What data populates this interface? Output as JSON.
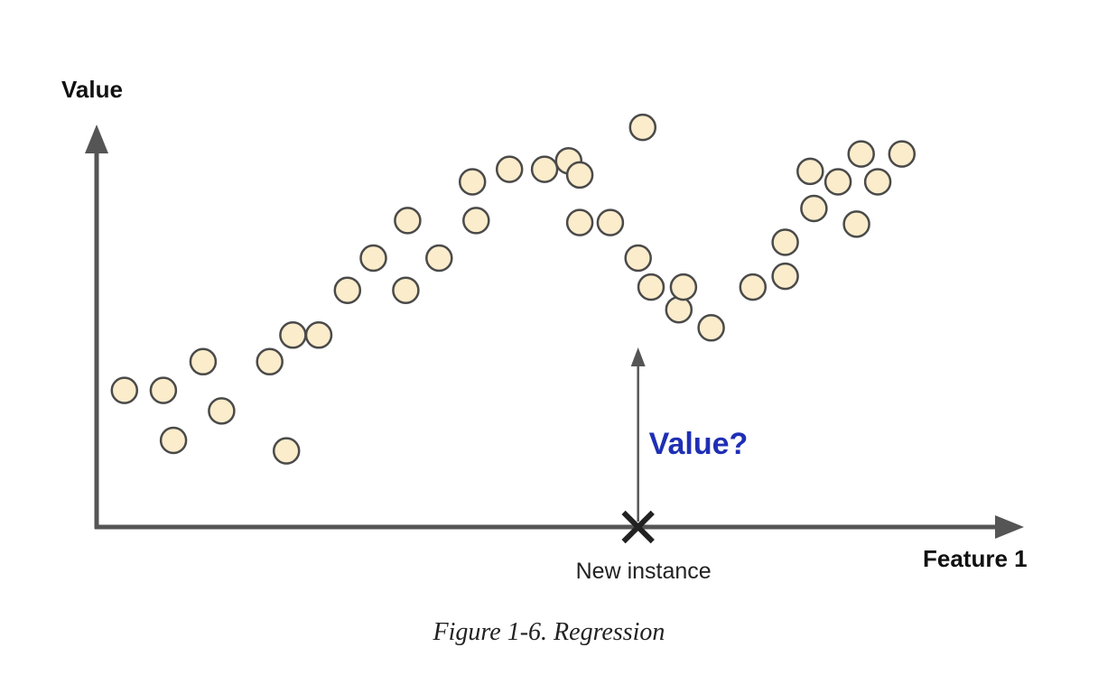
{
  "chart_data": {
    "type": "scatter",
    "title": "",
    "xlabel": "Feature 1",
    "ylabel": "Value",
    "xlim": [
      0,
      100
    ],
    "ylim": [
      0,
      100
    ],
    "grid": false,
    "legend": "none",
    "axis_ticks": false,
    "points": [
      {
        "x": 3.2,
        "y": 34.1
      },
      {
        "x": 7.4,
        "y": 34.1
      },
      {
        "x": 8.5,
        "y": 21.7
      },
      {
        "x": 11.7,
        "y": 41.2
      },
      {
        "x": 13.7,
        "y": 29.0
      },
      {
        "x": 18.9,
        "y": 41.2
      },
      {
        "x": 20.7,
        "y": 19.1
      },
      {
        "x": 21.4,
        "y": 47.8
      },
      {
        "x": 24.2,
        "y": 47.8
      },
      {
        "x": 27.3,
        "y": 58.9
      },
      {
        "x": 30.1,
        "y": 66.9
      },
      {
        "x": 33.6,
        "y": 58.9
      },
      {
        "x": 33.8,
        "y": 76.2
      },
      {
        "x": 37.2,
        "y": 66.9
      },
      {
        "x": 40.8,
        "y": 85.8
      },
      {
        "x": 41.2,
        "y": 76.2
      },
      {
        "x": 44.8,
        "y": 88.9
      },
      {
        "x": 48.6,
        "y": 88.9
      },
      {
        "x": 51.2,
        "y": 91.0
      },
      {
        "x": 52.4,
        "y": 87.5
      },
      {
        "x": 52.4,
        "y": 75.7
      },
      {
        "x": 55.7,
        "y": 75.7
      },
      {
        "x": 58.7,
        "y": 66.9
      },
      {
        "x": 59.2,
        "y": 99.3
      },
      {
        "x": 60.1,
        "y": 59.7
      },
      {
        "x": 63.1,
        "y": 54.1
      },
      {
        "x": 63.6,
        "y": 59.7
      },
      {
        "x": 66.6,
        "y": 49.6
      },
      {
        "x": 71.1,
        "y": 59.7
      },
      {
        "x": 74.6,
        "y": 62.4
      },
      {
        "x": 74.6,
        "y": 70.8
      },
      {
        "x": 77.3,
        "y": 88.4
      },
      {
        "x": 77.7,
        "y": 79.2
      },
      {
        "x": 80.3,
        "y": 85.8
      },
      {
        "x": 82.3,
        "y": 75.3
      },
      {
        "x": 82.8,
        "y": 92.7
      },
      {
        "x": 84.6,
        "y": 85.8
      },
      {
        "x": 87.2,
        "y": 92.7
      }
    ],
    "new_instance": {
      "x": 58.7
    },
    "annotations": {
      "instance_label": "New instance",
      "question_label": "Value?"
    },
    "colors": {
      "point_fill": "#fbeccb",
      "point_stroke": "#4a4a4a",
      "axis": "#555555",
      "question": "#1f2fb5",
      "marker": "#222222"
    }
  },
  "caption": "Figure 1-6. Regression"
}
